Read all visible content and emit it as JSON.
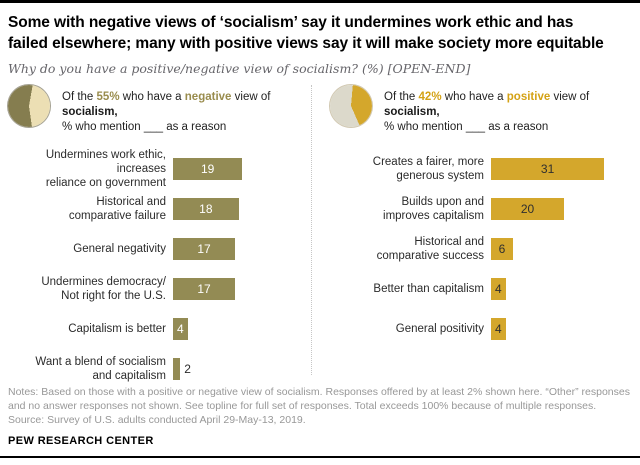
{
  "title_lines": [
    "Some with negative views of ‘socialism’ say it undermines work ethic and has",
    "failed elsewhere; many with positive views say it will make society more equitable"
  ],
  "subtitle": "Why do you have a positive/negative view of socialism? (%) [OPEN-END]",
  "colors": {
    "negative_bar": "#938b54",
    "negative_pie_dark": "#857d4f",
    "negative_pie_light": "#ecdfb4",
    "positive_bar": "#d4a72c",
    "positive_pie_light": "#dcd9cb"
  },
  "panels": [
    {
      "header": {
        "of_the": "Of the ",
        "pct": "55%",
        "who_have": " who have a ",
        "sentiment": "negative",
        "view_of": " view of ",
        "socialism": "socialism,",
        "line2": "% who mention ___ as a reason"
      }
    },
    {
      "header": {
        "of_the": "Of the ",
        "pct": "42%",
        "who_have": " who have a ",
        "sentiment": "positive",
        "view_of": " view of ",
        "socialism": "socialism,",
        "line2": "% who mention ___ as a reason"
      }
    }
  ],
  "chart_data": [
    {
      "type": "bar",
      "orientation": "horizontal",
      "group": "negative view (55%)",
      "title": "Of the 55% who have a negative view of socialism, % who mention ___ as a reason",
      "categories": [
        "Undermines work ethic, increases\nreliance on government",
        "Historical and\ncomparative failure",
        "General negativity",
        "Undermines democracy/\nNot right for the U.S.",
        "Capitalism is better",
        "Want a blend of socialism\nand capitalism"
      ],
      "values": [
        19,
        18,
        17,
        17,
        4,
        2
      ],
      "bar_color": "#938b54",
      "value_label_color_inside": "#ffffff",
      "xlim": [
        0,
        35
      ],
      "grid": false,
      "value_labels": true
    },
    {
      "type": "bar",
      "orientation": "horizontal",
      "group": "positive view (42%)",
      "title": "Of the 42% who have a positive view of socialism, % who mention ___ as a reason",
      "categories": [
        "Creates a fairer, more\ngenerous system",
        "Builds upon and\nimproves capitalism",
        "Historical and\ncomparative success",
        "Better than capitalism",
        "General positivity"
      ],
      "values": [
        31,
        20,
        6,
        4,
        4
      ],
      "bar_color": "#d4a72c",
      "value_label_color_inside": "#2f2f2f",
      "xlim": [
        0,
        35
      ],
      "grid": false,
      "value_labels": true
    }
  ],
  "notes": "Notes: Based on those with a positive or negative view of socialism. Responses offered by at least 2% shown here. “Other” responses and no answer responses not shown. See topline for full set of responses. Total exceeds 100% because of multiple responses.",
  "source": "Source: Survey of U.S. adults conducted April 29-May-13, 2019.",
  "footer": "PEW RESEARCH CENTER"
}
